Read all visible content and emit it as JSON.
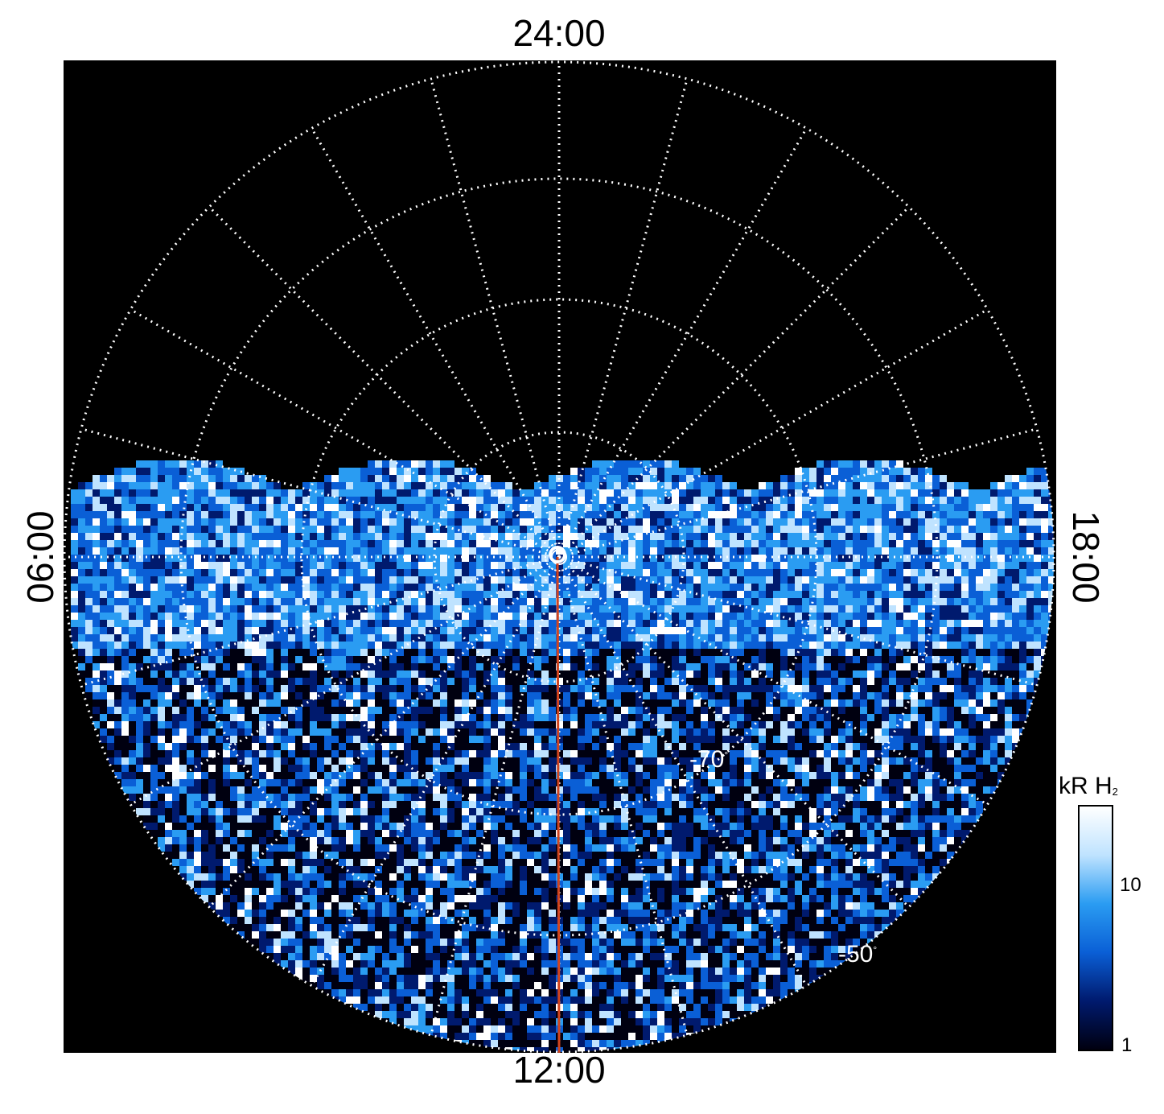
{
  "labels": {
    "top": "24:00",
    "bottom": "12:00",
    "left": "06:00",
    "right": "18:00"
  },
  "latitude_labels": {
    "lat70": "-70",
    "lat50": "-50",
    "degree": "°"
  },
  "colorbar": {
    "title": "kR H",
    "subscript": "2",
    "tick_10": "10",
    "tick_1": "1",
    "scale": "log"
  },
  "colors": {
    "background": "#000000",
    "grid": "#ffffff",
    "noon_line": "#d2441e",
    "colormap": [
      "#000010",
      "#001a6e",
      "#0a5fd6",
      "#2a9cf2",
      "#bfe3ff",
      "#ffffff"
    ]
  }
}
